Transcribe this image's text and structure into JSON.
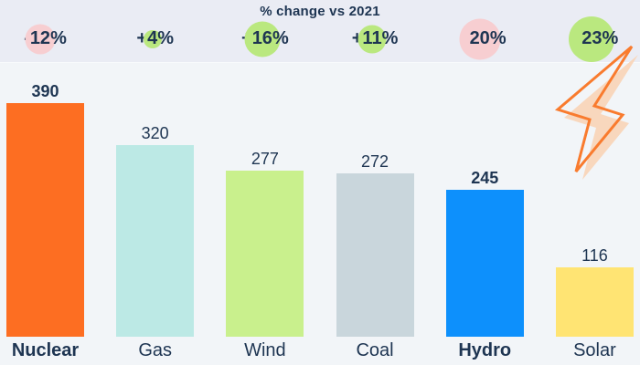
{
  "header": {
    "title": "% change vs 2021"
  },
  "badges": [
    {
      "label": "-12%",
      "sign": "-",
      "number": "12",
      "unit": "%"
    },
    {
      "label": "+4%",
      "sign": "+",
      "number": "4",
      "unit": "%"
    },
    {
      "label": "+16%",
      "sign": "+",
      "number": "16",
      "unit": "%"
    },
    {
      "label": "+11%",
      "sign": "+",
      "number": "11",
      "unit": "%"
    },
    {
      "label": "-20%",
      "sign": "-",
      "number": "20",
      "unit": "%"
    },
    {
      "label": "+23%",
      "sign": "+",
      "number": "23",
      "unit": "%"
    }
  ],
  "chart_data": {
    "type": "bar",
    "title": "% change vs 2021",
    "categories": [
      "Nuclear",
      "Gas",
      "Wind",
      "Coal",
      "Hydro",
      "Solar"
    ],
    "values": [
      390,
      320,
      277,
      272,
      245,
      116
    ],
    "pct_change_vs_2021": [
      -12,
      4,
      16,
      11,
      -20,
      23
    ],
    "bar_colors": [
      "#fd6e22",
      "#bce9e5",
      "#c9f08d",
      "#c9d6dc",
      "#0d90fc",
      "#ffe473"
    ],
    "emphasized_categories": [
      "Nuclear",
      "Hydro"
    ],
    "value_labels_shown": true,
    "xlabel": "",
    "ylabel": "",
    "ylim": [
      0,
      400
    ],
    "grid": false,
    "legend": "none"
  },
  "colors": {
    "background": "#f2f5f8",
    "header_background": "#eaecf4",
    "text": "#1e3552",
    "badge_negative": "#f7ced1",
    "badge_positive": "#bae87f",
    "bolt_stroke": "#f97b2e",
    "bolt_fill": "#f8d7bd"
  }
}
